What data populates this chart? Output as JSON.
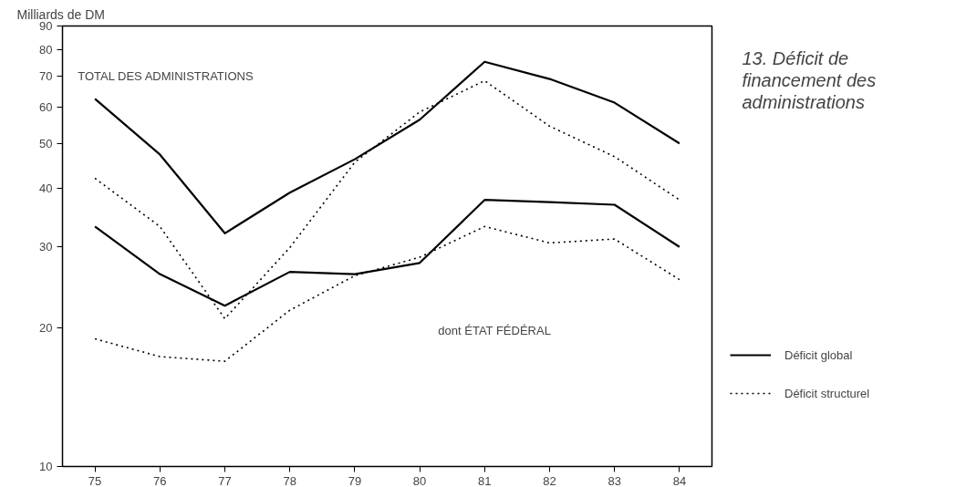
{
  "chart_data": {
    "type": "line",
    "title": "13. Déficit de financement des administrations",
    "ylabel": "Milliards de DM",
    "x": [
      75,
      76,
      77,
      78,
      79,
      80,
      81,
      82,
      83,
      84
    ],
    "xlim": [
      74.5,
      84.5
    ],
    "xticks": [
      75,
      76,
      77,
      78,
      79,
      80,
      81,
      82,
      83,
      84
    ],
    "ylim": [
      10,
      90
    ],
    "yticks": [
      10,
      20,
      30,
      40,
      50,
      60,
      70,
      80,
      90
    ],
    "log": true,
    "grid": false,
    "legend": "right",
    "marker": "none",
    "series": [
      {
        "name": "Déficit global",
        "color": "#000000",
        "line_style": "solid",
        "values": [
          62.6,
          47.4,
          32.0,
          39.2,
          46.3,
          56.4,
          75.3,
          69.1,
          61.4,
          50.1
        ]
      },
      {
        "name": "Déficit structurel",
        "color": "#000000",
        "line_style": "dotted",
        "values": [
          42.1,
          33.1,
          20.9,
          29.8,
          45.6,
          58.6,
          68.5,
          54.6,
          46.9,
          37.8
        ]
      },
      {
        "color": "#000000",
        "line_style": "solid",
        "values": [
          33.1,
          26.1,
          22.3,
          26.4,
          26.1,
          27.6,
          37.8,
          37.4,
          36.9,
          29.9
        ]
      },
      {
        "color": "#000000",
        "line_style": "dotted",
        "values": [
          18.9,
          17.3,
          16.9,
          21.8,
          25.9,
          28.4,
          33.1,
          30.5,
          31.1,
          25.4
        ]
      }
    ],
    "annotations": [
      "TOTAL DES ADMINISTRATIONS",
      "dont ÉTAT FÉDÉRAL"
    ]
  }
}
